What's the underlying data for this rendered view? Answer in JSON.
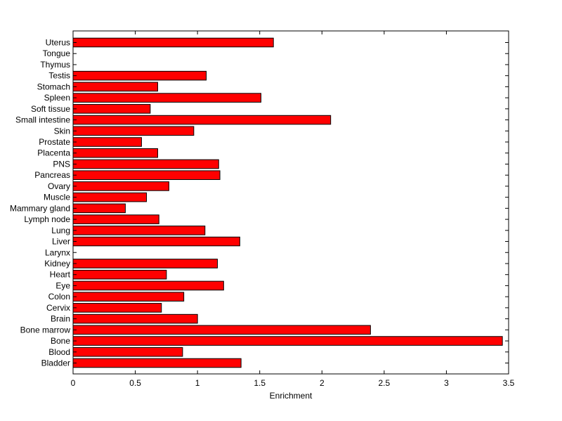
{
  "chart_data": {
    "type": "bar",
    "orientation": "horizontal",
    "categories": [
      "Uterus",
      "Tongue",
      "Thymus",
      "Testis",
      "Stomach",
      "Spleen",
      "Soft tissue",
      "Small intestine",
      "Skin",
      "Prostate",
      "Placenta",
      "PNS",
      "Pancreas",
      "Ovary",
      "Muscle",
      "Mammary gland",
      "Lymph node",
      "Lung",
      "Liver",
      "Larynx",
      "Kidney",
      "Heart",
      "Eye",
      "Colon",
      "Cervix",
      "Brain",
      "Bone marrow",
      "Bone",
      "Blood",
      "Bladder"
    ],
    "values": [
      1.61,
      0,
      0,
      1.07,
      0.68,
      1.51,
      0.62,
      2.07,
      0.97,
      0.55,
      0.68,
      1.17,
      1.18,
      0.77,
      0.59,
      0.42,
      0.69,
      1.06,
      1.34,
      0,
      1.16,
      0.75,
      1.21,
      0.89,
      0.71,
      1.0,
      2.39,
      3.45,
      0.88,
      1.35
    ],
    "xlabel": "Enrichment",
    "ylabel": "",
    "title": "",
    "xlim": [
      0,
      3.5
    ],
    "xticks": [
      "0",
      "0.5",
      "1",
      "1.5",
      "2",
      "2.5",
      "3",
      "3.5"
    ],
    "bar_color": "#ff0000",
    "grid": false
  }
}
